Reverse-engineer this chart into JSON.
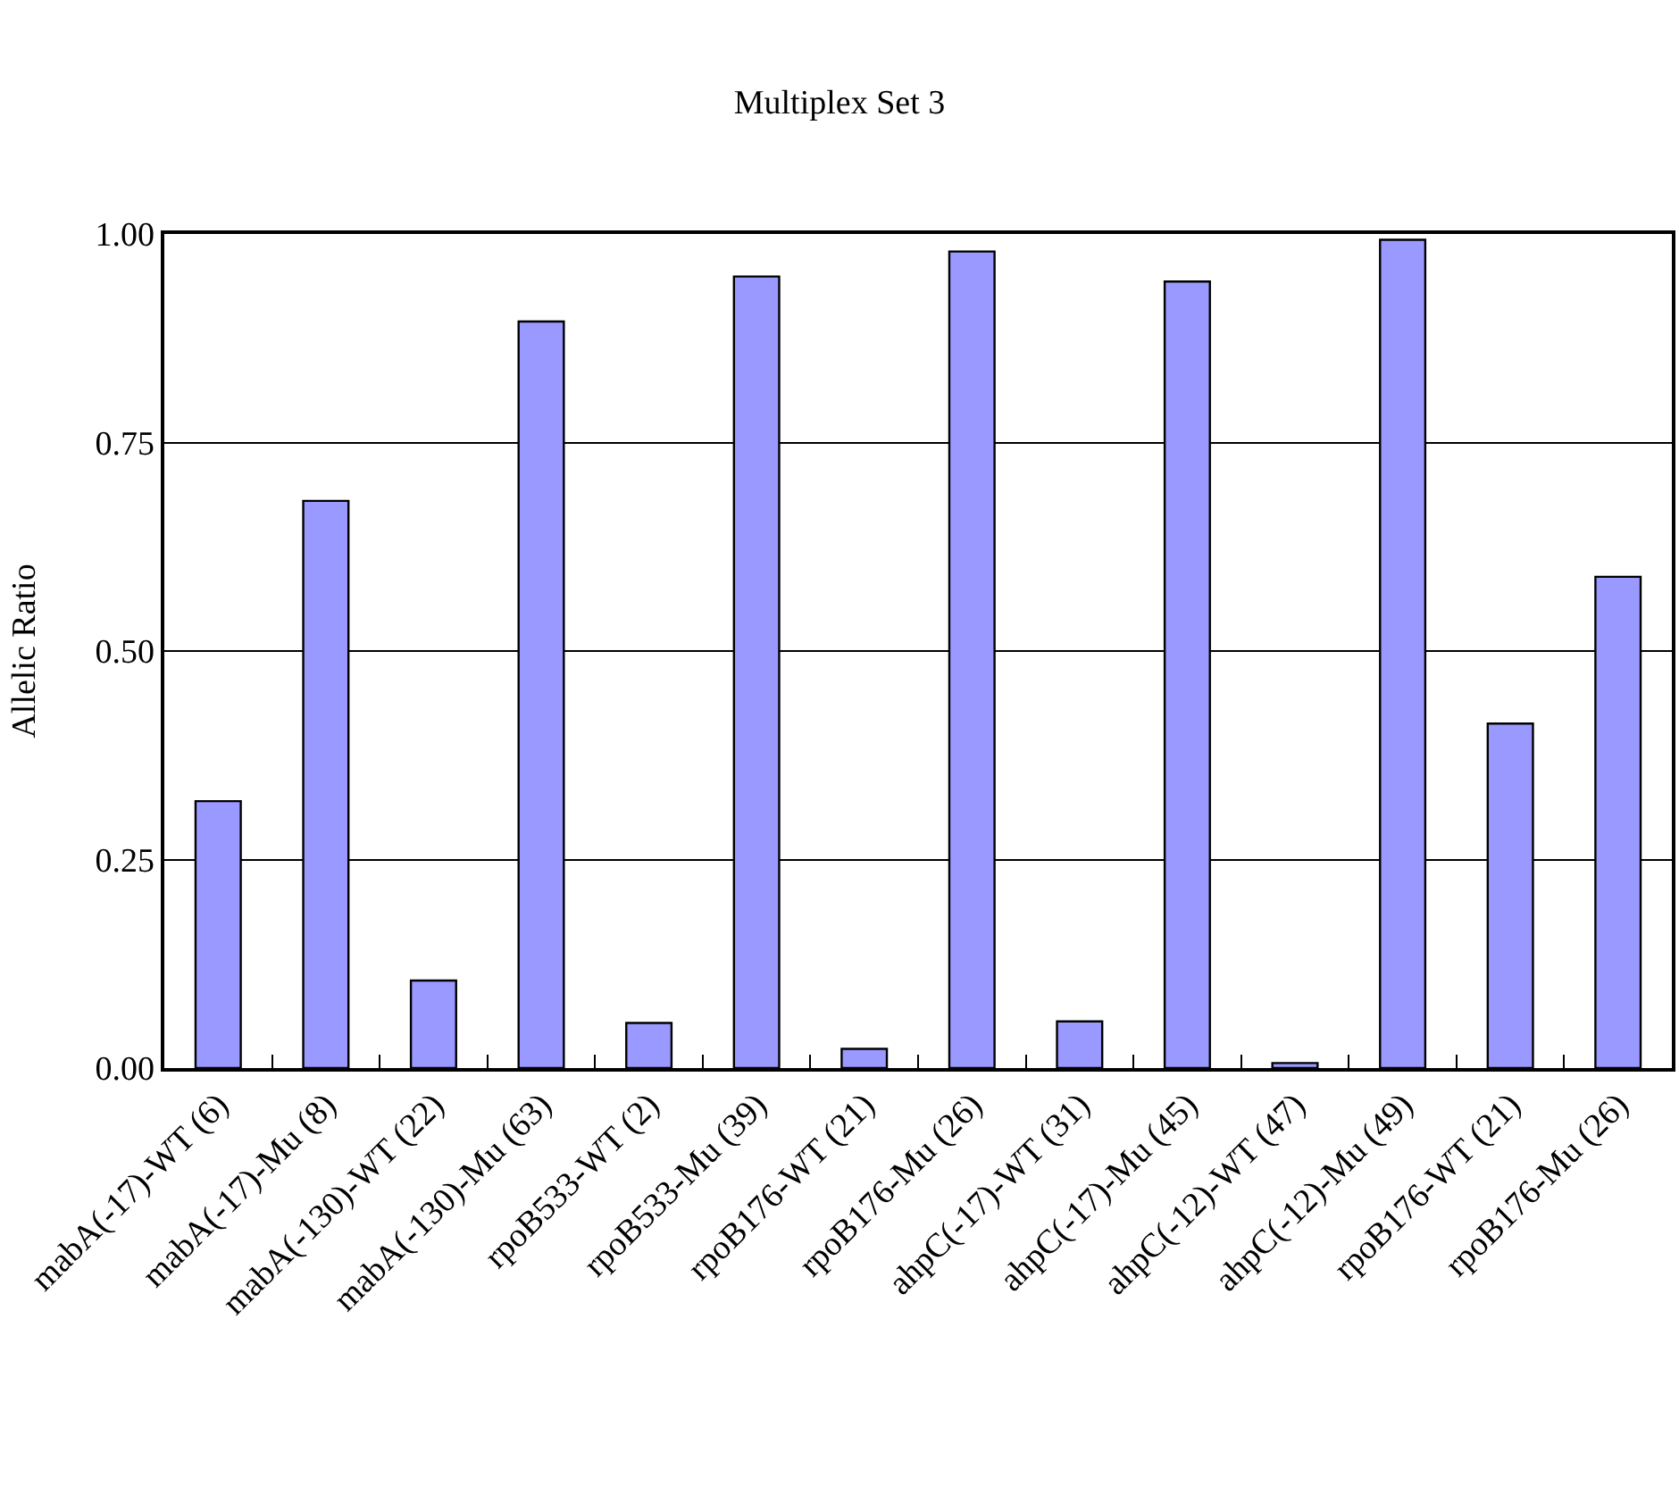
{
  "chart_data": {
    "type": "bar",
    "title": "Multiplex Set 3",
    "ylabel": "Allelic Ratio",
    "categories": [
      "mabA(-17)-WT (6)",
      "mabA(-17)-Mu (8)",
      "mabA(-130)-WT (22)",
      "mabA(-130)-Mu (63)",
      "rpoB533-WT (2)",
      "rpoB533-Mu (39)",
      "rpoB176-WT (21)",
      "rpoB176-Mu (26)",
      "ahpC(-17)-WT (31)",
      "ahpC(-17)-Mu (45)",
      "ahpC(-12)-WT (47)",
      "ahpC(-12)-Mu (49)",
      "rpoB176-WT (21)",
      "rpoB176-Mu (26)"
    ],
    "values": [
      0.32,
      0.68,
      0.105,
      0.895,
      0.054,
      0.949,
      0.023,
      0.979,
      0.056,
      0.943,
      0.006,
      0.993,
      0.413,
      0.589
    ],
    "color": "#9999ff",
    "ylim": [
      0,
      1
    ],
    "yticks": [
      {
        "value": 0,
        "label": "0.00"
      },
      {
        "value": 0.25,
        "label": "0.25"
      },
      {
        "value": 0.5,
        "label": "0.50"
      },
      {
        "value": 0.75,
        "label": "0.75"
      },
      {
        "value": 1,
        "label": "1.00"
      }
    ],
    "grid": "y"
  }
}
